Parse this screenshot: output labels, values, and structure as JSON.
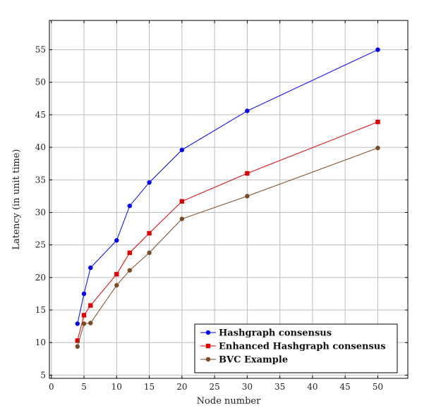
{
  "chart_data": {
    "type": "line",
    "title": "",
    "xlabel": "Node number",
    "ylabel": "Latency (in unit time)",
    "xlim": [
      -0.3,
      54.6
    ],
    "ylim": [
      4.5,
      59.5
    ],
    "xticks": [
      0,
      5,
      10,
      15,
      20,
      25,
      30,
      35,
      40,
      45,
      50
    ],
    "yticks": [
      5,
      10,
      15,
      20,
      25,
      30,
      35,
      40,
      45,
      50,
      55
    ],
    "grid": true,
    "legend_position": "bottom-right",
    "series": [
      {
        "name": "Hashgraph consensus",
        "color": "#0000ff",
        "marker": "circle",
        "x": [
          4,
          5,
          6,
          10,
          12,
          15,
          20,
          30,
          50
        ],
        "y": [
          12.9,
          17.5,
          21.5,
          25.7,
          31.0,
          34.6,
          39.6,
          45.6,
          55.0
        ]
      },
      {
        "name": "Enhanced Hashgraph consensus",
        "color": "#e00000",
        "marker": "square",
        "x": [
          4,
          5,
          6,
          10,
          12,
          15,
          20,
          30,
          50
        ],
        "y": [
          10.3,
          14.2,
          15.7,
          20.5,
          23.8,
          26.8,
          31.7,
          36.0,
          43.9
        ]
      },
      {
        "name": "BVC Example",
        "color": "#7b4a24",
        "marker": "circle",
        "x": [
          4,
          5,
          6,
          10,
          12,
          15,
          20,
          30,
          50
        ],
        "y": [
          9.4,
          12.9,
          13.0,
          18.8,
          21.1,
          23.8,
          29.0,
          32.5,
          39.9
        ]
      }
    ]
  }
}
